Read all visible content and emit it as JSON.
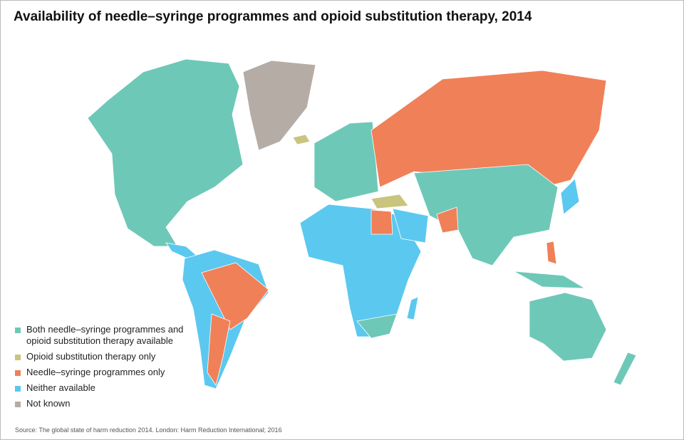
{
  "title": "Availability of needle–syringe programmes and opioid substitution therapy, 2014",
  "legend": [
    {
      "label": "Both needle–syringe programmes and opioid substitution therapy available",
      "color": "#6ec8b8"
    },
    {
      "label": "Opioid substitution therapy only",
      "color": "#c9c47e"
    },
    {
      "label": "Needle–syringe programmes only",
      "color": "#f08058"
    },
    {
      "label": "Neither available",
      "color": "#5bc8f0"
    },
    {
      "label": "Not known",
      "color": "#b5aca6"
    }
  ],
  "source": "Source: The global state of harm reduction 2014. London: Harm Reduction International; 2016"
}
